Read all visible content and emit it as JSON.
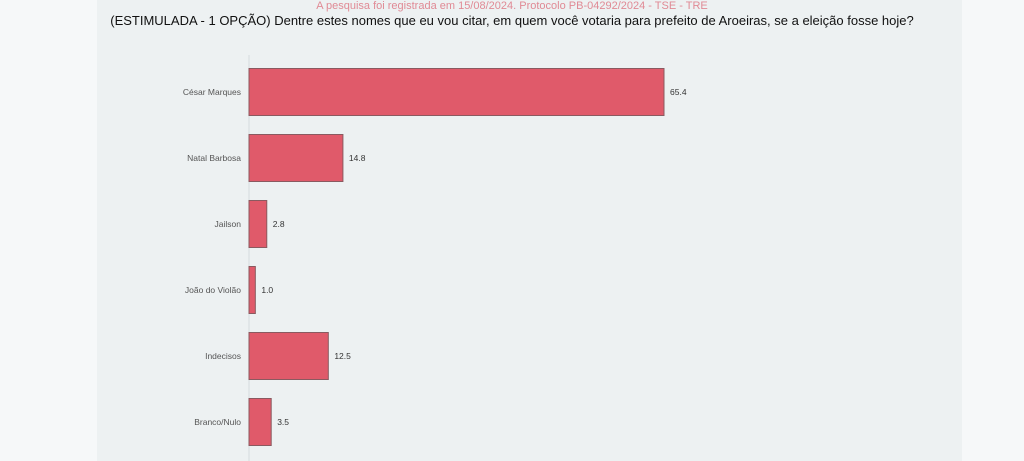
{
  "note": "A pesquisa foi registrada em 15/08/2024. Protocolo PB-04292/2024 - TSE - TRE",
  "chart_data": {
    "type": "bar",
    "orientation": "horizontal",
    "title": "(ESTIMULADA - 1 OPÇÃO) Dentre estes nomes que eu vou citar, em quem você votaria para prefeito de Aroeiras, se a eleição fosse hoje?",
    "categories": [
      "César Marques",
      "Natal Barbosa",
      "Jailson",
      "João do Violão",
      "Indecisos",
      "Branco/Nulo"
    ],
    "values": [
      65.4,
      14.8,
      2.8,
      1.0,
      12.5,
      3.5
    ],
    "value_labels": [
      "65.4",
      "14.8",
      "2.8",
      "1.0",
      "12.5",
      "3.5"
    ],
    "xlabel": "",
    "ylabel": "",
    "xlim": [
      0,
      100
    ],
    "grid": false,
    "bar_color": "#e05a6a"
  }
}
